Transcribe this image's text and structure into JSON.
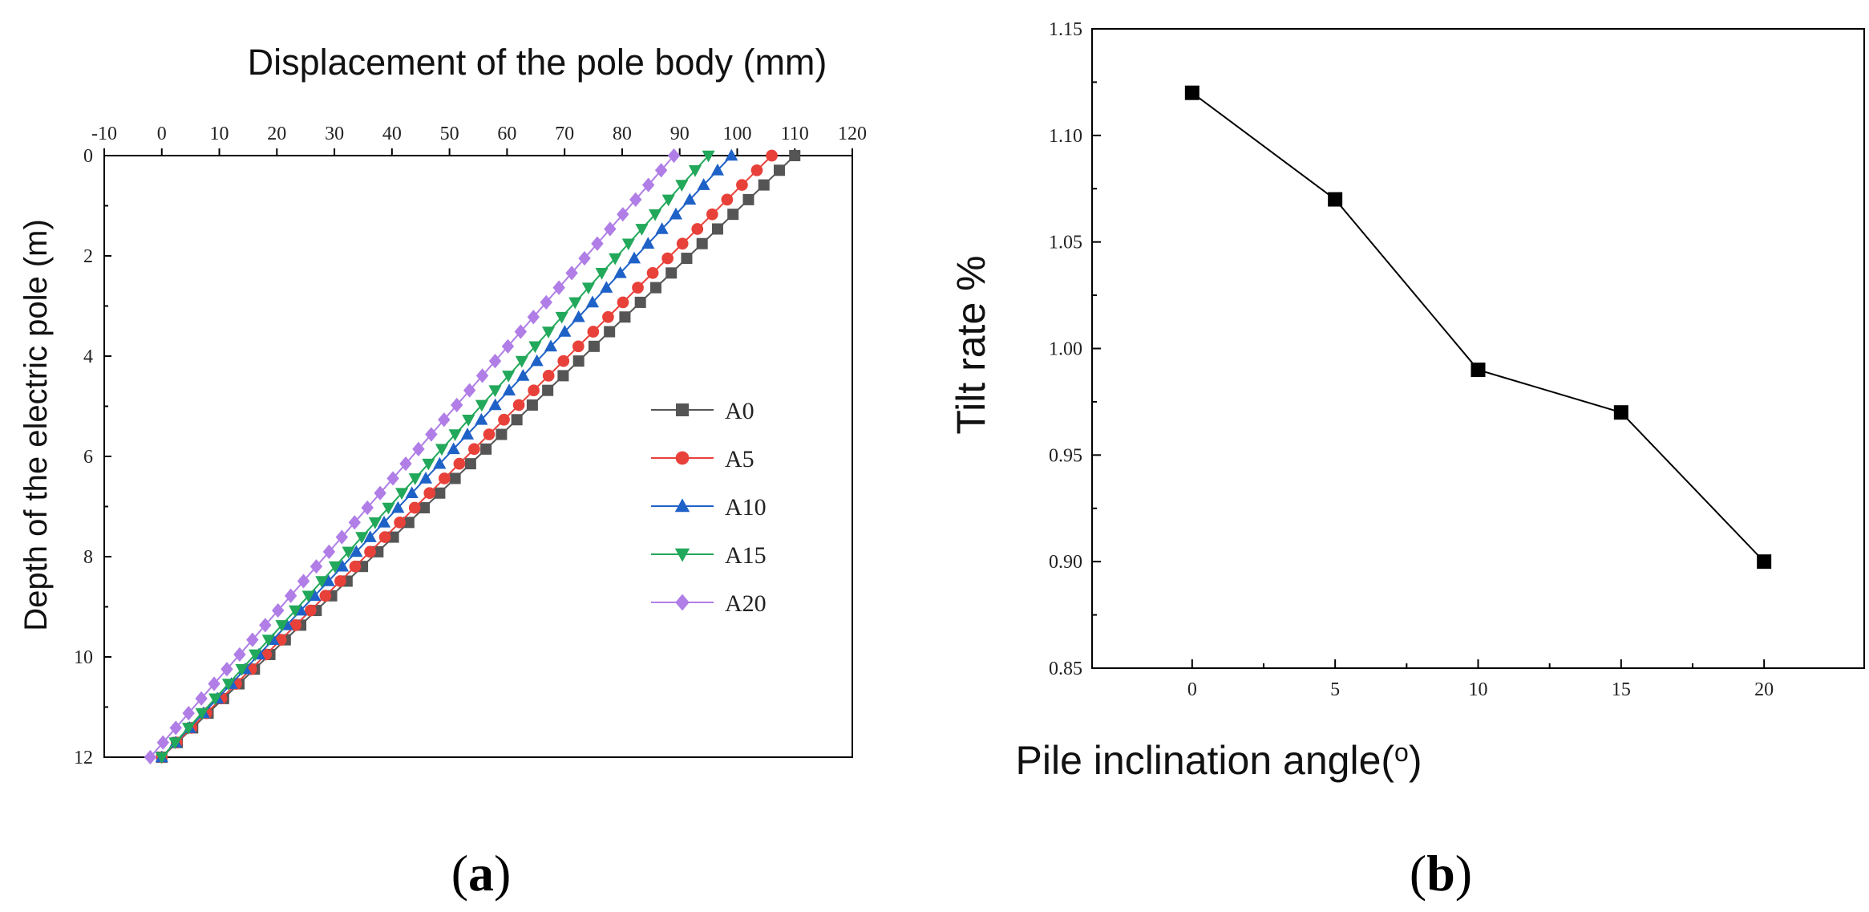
{
  "figure": {
    "panel_a_label": "(a)",
    "panel_a_letter": "a",
    "panel_b_label": "(b)",
    "panel_b_letter": "b"
  },
  "chart_data": [
    {
      "id": "a",
      "type": "line",
      "title": "Displacement of the pole body (mm)",
      "xlabel": "Displacement of the pole body (mm)",
      "ylabel": "Depth of the electric pole (m)",
      "xlim": [
        -10,
        120
      ],
      "ylim": [
        0,
        12
      ],
      "y_inverted": true,
      "x_axis_position": "top",
      "x_ticks": [
        -10,
        0,
        10,
        20,
        30,
        40,
        50,
        60,
        70,
        80,
        90,
        100,
        110,
        120
      ],
      "y_ticks": [
        0,
        2,
        4,
        6,
        8,
        10,
        12
      ],
      "legend_position": "center-right",
      "series": [
        {
          "name": "A0",
          "color": "#555555",
          "marker": "square",
          "displacement_at_top": 110,
          "displacement_at_bottom": 0,
          "points": 42
        },
        {
          "name": "A5",
          "color": "#e8413a",
          "marker": "circle",
          "displacement_at_top": 106,
          "displacement_at_bottom": 0,
          "points": 42
        },
        {
          "name": "A10",
          "color": "#1f62c7",
          "marker": "triangle-up",
          "displacement_at_top": 99,
          "displacement_at_bottom": 0,
          "points": 42
        },
        {
          "name": "A15",
          "color": "#22a85a",
          "marker": "triangle-down",
          "displacement_at_top": 95,
          "displacement_at_bottom": 0,
          "points": 42
        },
        {
          "name": "A20",
          "color": "#b07ee6",
          "marker": "diamond",
          "displacement_at_top": 89,
          "displacement_at_bottom": -2,
          "points": 42
        }
      ]
    },
    {
      "id": "b",
      "type": "line",
      "title": "",
      "xlabel": "Pile inclination angle(o)",
      "ylabel": "Tilt rate %",
      "xlim": [
        -3.5,
        23.5
      ],
      "ylim": [
        0.85,
        1.15
      ],
      "x_ticks": [
        0,
        5,
        10,
        15,
        20
      ],
      "x_tick_labels": [
        "0",
        "5",
        "10",
        "15",
        "20"
      ],
      "y_ticks": [
        0.85,
        0.9,
        0.95,
        1.0,
        1.05,
        1.1,
        1.15
      ],
      "y_tick_labels": [
        "0.85",
        "0.90",
        "0.95",
        "1.00",
        "1.05",
        "1.10",
        "1.15"
      ],
      "x": [
        0,
        5,
        10,
        15,
        20
      ],
      "y": [
        1.12,
        1.07,
        0.99,
        0.97,
        0.9
      ],
      "color": "#000000",
      "marker": "square"
    }
  ]
}
